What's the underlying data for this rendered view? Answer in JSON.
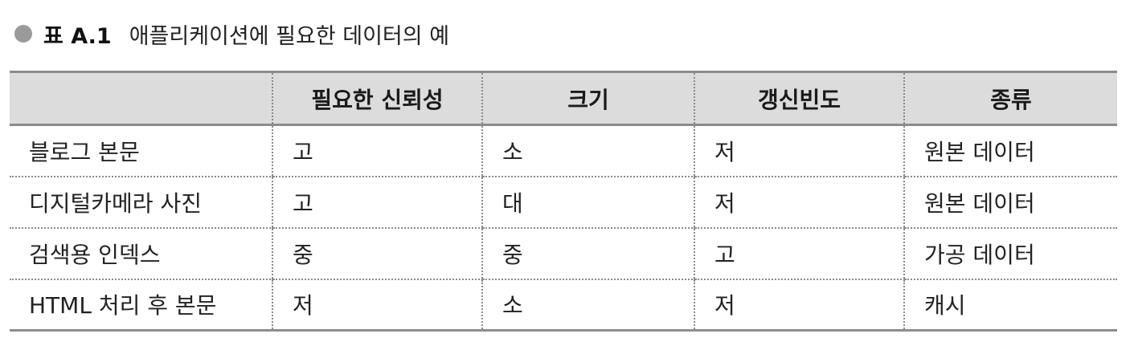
{
  "caption": {
    "label": "표 A.1",
    "title": "애플리케이션에 필요한 데이터의 예"
  },
  "table": {
    "headers": [
      "",
      "필요한 신뢰성",
      "크기",
      "갱신빈도",
      "종류"
    ],
    "rows": [
      [
        "블로그 본문",
        "고",
        "소",
        "저",
        "원본 데이터"
      ],
      [
        "디지털카메라 사진",
        "고",
        "대",
        "저",
        "원본 데이터"
      ],
      [
        "검색용 인덱스",
        "중",
        "중",
        "고",
        "가공 데이터"
      ],
      [
        "HTML 처리 후 본문",
        "저",
        "소",
        "저",
        "캐시"
      ]
    ]
  },
  "colors": {
    "header_background": "#dcdcdc",
    "rule": "#8c8c8c",
    "bullet": "#9a9a9a"
  }
}
